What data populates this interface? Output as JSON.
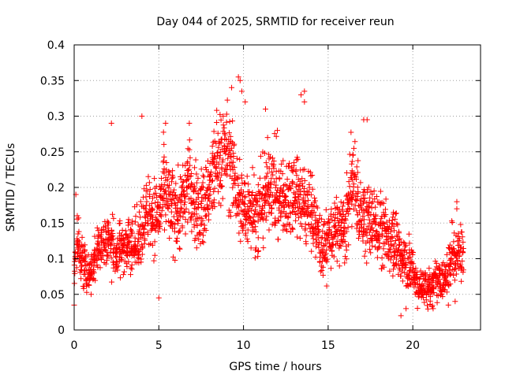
{
  "chart_data": {
    "type": "scatter",
    "title": "Day 044 of 2025, SRMTID for receiver reun",
    "xlabel": "GPS time / hours",
    "ylabel": "SRMTID / TECUs",
    "xlim": [
      0,
      24
    ],
    "ylim": [
      0,
      0.4
    ],
    "xticks": [
      0,
      5,
      10,
      15,
      20
    ],
    "xtick_labels": [
      "0",
      "5",
      "10",
      "15",
      "20"
    ],
    "yticks": [
      0,
      0.05,
      0.1,
      0.15,
      0.2,
      0.25,
      0.3,
      0.35,
      0.4
    ],
    "ytick_labels": [
      "0",
      "0.05",
      "0.1",
      "0.15",
      "0.2",
      "0.25",
      "0.3",
      "0.35",
      "0.4"
    ],
    "grid": true,
    "marker": "+",
    "color": "#ff0000",
    "x_start": 0,
    "x_step": 0.1,
    "trend": [
      0.1,
      0.13,
      0.11,
      0.1,
      0.1,
      0.09,
      0.09,
      0.08,
      0.08,
      0.08,
      0.09,
      0.09,
      0.1,
      0.11,
      0.12,
      0.12,
      0.12,
      0.12,
      0.13,
      0.13,
      0.13,
      0.12,
      0.12,
      0.11,
      0.11,
      0.11,
      0.11,
      0.11,
      0.12,
      0.12,
      0.12,
      0.12,
      0.12,
      0.12,
      0.13,
      0.13,
      0.12,
      0.12,
      0.13,
      0.14,
      0.15,
      0.16,
      0.16,
      0.17,
      0.17,
      0.16,
      0.16,
      0.16,
      0.16,
      0.16,
      0.17,
      0.18,
      0.19,
      0.19,
      0.19,
      0.18,
      0.17,
      0.17,
      0.17,
      0.17,
      0.17,
      0.17,
      0.17,
      0.17,
      0.18,
      0.19,
      0.2,
      0.21,
      0.2,
      0.19,
      0.18,
      0.18,
      0.17,
      0.17,
      0.17,
      0.17,
      0.17,
      0.18,
      0.19,
      0.19,
      0.2,
      0.21,
      0.22,
      0.23,
      0.24,
      0.24,
      0.24,
      0.24,
      0.25,
      0.25,
      0.25,
      0.24,
      0.23,
      0.22,
      0.21,
      0.2,
      0.19,
      0.18,
      0.18,
      0.17,
      0.17,
      0.17,
      0.17,
      0.18,
      0.18,
      0.17,
      0.17,
      0.16,
      0.16,
      0.17,
      0.18,
      0.18,
      0.19,
      0.19,
      0.2,
      0.21,
      0.21,
      0.2,
      0.2,
      0.19,
      0.18,
      0.18,
      0.18,
      0.18,
      0.18,
      0.18,
      0.19,
      0.19,
      0.19,
      0.2,
      0.2,
      0.2,
      0.19,
      0.19,
      0.18,
      0.18,
      0.17,
      0.17,
      0.17,
      0.17,
      0.17,
      0.16,
      0.15,
      0.14,
      0.13,
      0.12,
      0.12,
      0.12,
      0.12,
      0.12,
      0.13,
      0.13,
      0.13,
      0.14,
      0.14,
      0.14,
      0.14,
      0.14,
      0.14,
      0.14,
      0.15,
      0.17,
      0.18,
      0.2,
      0.21,
      0.21,
      0.19,
      0.18,
      0.17,
      0.16,
      0.16,
      0.16,
      0.15,
      0.15,
      0.15,
      0.15,
      0.15,
      0.15,
      0.15,
      0.15,
      0.14,
      0.14,
      0.13,
      0.13,
      0.13,
      0.13,
      0.13,
      0.14,
      0.14,
      0.13,
      0.12,
      0.11,
      0.1,
      0.1,
      0.1,
      0.09,
      0.09,
      0.09,
      0.09,
      0.09,
      0.08,
      0.07,
      0.06,
      0.06,
      0.06,
      0.06,
      0.06,
      0.06,
      0.06,
      0.06,
      0.06,
      0.06,
      0.06,
      0.07,
      0.07,
      0.07,
      0.07,
      0.07,
      0.07,
      0.07,
      0.08,
      0.09,
      0.1,
      0.11,
      0.11,
      0.11,
      0.11,
      0.11,
      0.11,
      0.11
    ],
    "spread": [
      0.03,
      0.04,
      0.03,
      0.025,
      0.025,
      0.025,
      0.02,
      0.02,
      0.02,
      0.02,
      0.02,
      0.02,
      0.025,
      0.025,
      0.025,
      0.025,
      0.03,
      0.03,
      0.03,
      0.03,
      0.03,
      0.03,
      0.03,
      0.03,
      0.03,
      0.03,
      0.03,
      0.03,
      0.03,
      0.03,
      0.03,
      0.03,
      0.03,
      0.03,
      0.03,
      0.03,
      0.03,
      0.03,
      0.035,
      0.035,
      0.04,
      0.04,
      0.04,
      0.04,
      0.04,
      0.04,
      0.04,
      0.04,
      0.04,
      0.04,
      0.045,
      0.045,
      0.045,
      0.045,
      0.045,
      0.045,
      0.045,
      0.045,
      0.045,
      0.045,
      0.045,
      0.045,
      0.045,
      0.045,
      0.045,
      0.045,
      0.045,
      0.045,
      0.045,
      0.045,
      0.045,
      0.045,
      0.045,
      0.045,
      0.045,
      0.045,
      0.045,
      0.045,
      0.05,
      0.05,
      0.05,
      0.05,
      0.05,
      0.05,
      0.05,
      0.05,
      0.05,
      0.05,
      0.05,
      0.05,
      0.05,
      0.05,
      0.05,
      0.05,
      0.05,
      0.05,
      0.05,
      0.05,
      0.05,
      0.05,
      0.045,
      0.045,
      0.045,
      0.045,
      0.045,
      0.045,
      0.045,
      0.045,
      0.045,
      0.045,
      0.045,
      0.045,
      0.045,
      0.045,
      0.045,
      0.045,
      0.045,
      0.045,
      0.045,
      0.045,
      0.045,
      0.045,
      0.045,
      0.045,
      0.045,
      0.045,
      0.045,
      0.045,
      0.045,
      0.045,
      0.045,
      0.045,
      0.045,
      0.045,
      0.045,
      0.045,
      0.045,
      0.04,
      0.04,
      0.04,
      0.04,
      0.04,
      0.04,
      0.035,
      0.035,
      0.035,
      0.035,
      0.035,
      0.035,
      0.035,
      0.035,
      0.035,
      0.035,
      0.035,
      0.035,
      0.035,
      0.035,
      0.035,
      0.035,
      0.035,
      0.04,
      0.045,
      0.045,
      0.045,
      0.045,
      0.045,
      0.045,
      0.04,
      0.04,
      0.04,
      0.04,
      0.04,
      0.04,
      0.04,
      0.04,
      0.04,
      0.04,
      0.04,
      0.04,
      0.04,
      0.04,
      0.04,
      0.04,
      0.04,
      0.04,
      0.04,
      0.04,
      0.04,
      0.04,
      0.04,
      0.035,
      0.035,
      0.035,
      0.035,
      0.035,
      0.035,
      0.03,
      0.03,
      0.03,
      0.03,
      0.02,
      0.02,
      0.02,
      0.02,
      0.02,
      0.02,
      0.02,
      0.02,
      0.02,
      0.02,
      0.02,
      0.02,
      0.02,
      0.02,
      0.02,
      0.02,
      0.02,
      0.02,
      0.02,
      0.02,
      0.025,
      0.03,
      0.035,
      0.035,
      0.035,
      0.03,
      0.03,
      0.03,
      0.03,
      0.03
    ],
    "points_per_step": 10,
    "peak_points": [
      {
        "x": 9.7,
        "y": 0.355
      },
      {
        "x": 9.3,
        "y": 0.34
      },
      {
        "x": 9.8,
        "y": 0.35
      },
      {
        "x": 13.6,
        "y": 0.335
      },
      {
        "x": 13.6,
        "y": 0.32
      },
      {
        "x": 10.1,
        "y": 0.32
      },
      {
        "x": 11.3,
        "y": 0.31
      },
      {
        "x": 4.0,
        "y": 0.3
      },
      {
        "x": 17.1,
        "y": 0.295
      },
      {
        "x": 17.3,
        "y": 0.295
      },
      {
        "x": 2.2,
        "y": 0.29
      },
      {
        "x": 5.4,
        "y": 0.29
      },
      {
        "x": 6.8,
        "y": 0.29
      },
      {
        "x": 12.0,
        "y": 0.28
      },
      {
        "x": 8.8,
        "y": 0.3
      },
      {
        "x": 9.9,
        "y": 0.335
      },
      {
        "x": 0.1,
        "y": 0.19
      },
      {
        "x": 22.6,
        "y": 0.18
      },
      {
        "x": 22.6,
        "y": 0.17
      },
      {
        "x": 19.6,
        "y": 0.03
      },
      {
        "x": 21.2,
        "y": 0.03
      },
      {
        "x": 19.3,
        "y": 0.02
      },
      {
        "x": 22.1,
        "y": 0.035
      },
      {
        "x": 22.5,
        "y": 0.04
      },
      {
        "x": 0.0,
        "y": 0.035
      },
      {
        "x": 1.0,
        "y": 0.05
      },
      {
        "x": 5.0,
        "y": 0.045
      },
      {
        "x": 13.4,
        "y": 0.33
      }
    ]
  }
}
